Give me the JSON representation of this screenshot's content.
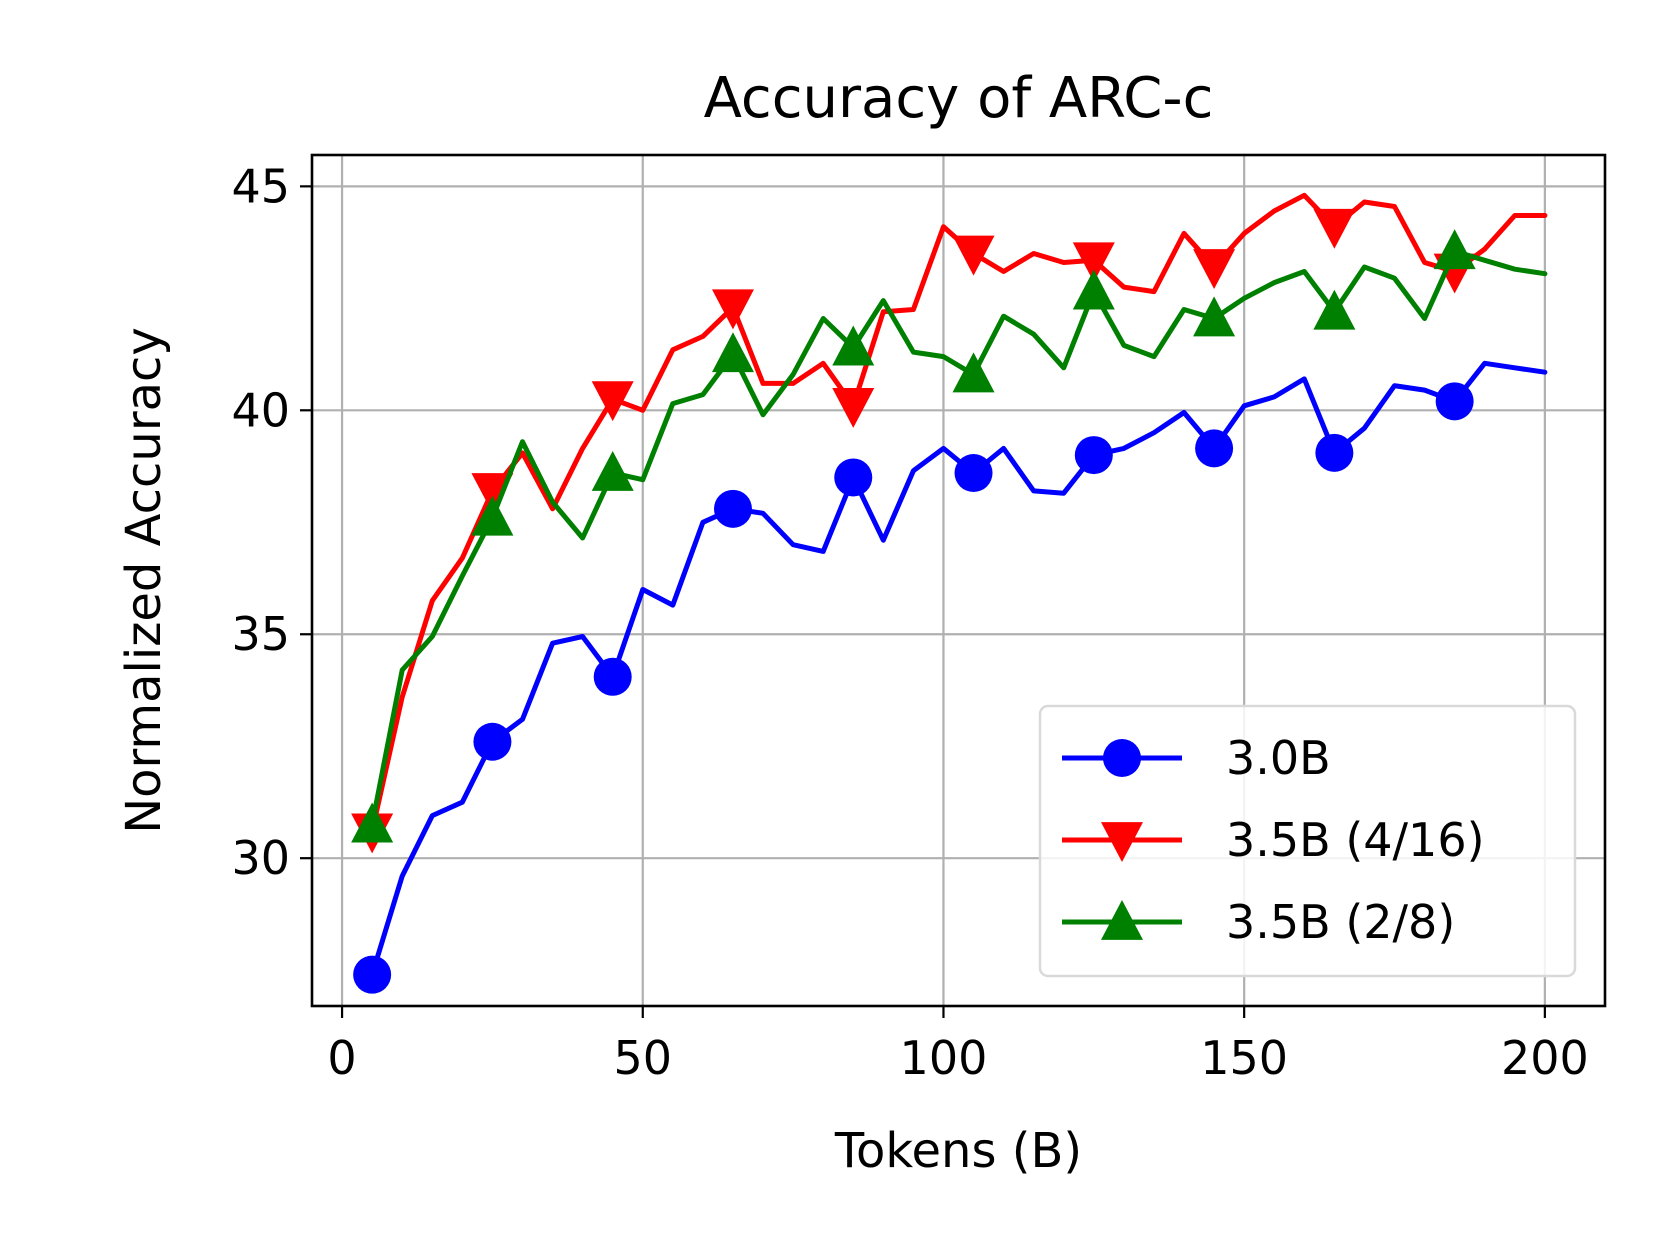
{
  "chart_data": {
    "type": "line",
    "title": "Accuracy of ARC-c",
    "xlabel": "Tokens (B)",
    "ylabel": "Normalized Accuracy",
    "xlim": [
      -5,
      210
    ],
    "ylim": [
      26.7,
      45.7
    ],
    "xticks": [
      0,
      50,
      100,
      150,
      200
    ],
    "yticks": [
      30,
      35,
      40,
      45
    ],
    "grid": true,
    "legend_position": "lower-right",
    "series": [
      {
        "name": "3.0B",
        "color": "#0000ff",
        "marker": "circle",
        "x": [
          5,
          10,
          15,
          20,
          25,
          30,
          35,
          40,
          45,
          50,
          55,
          60,
          65,
          70,
          75,
          80,
          85,
          90,
          95,
          100,
          105,
          110,
          115,
          120,
          125,
          130,
          135,
          140,
          145,
          150,
          155,
          160,
          165,
          170,
          175,
          180,
          185,
          190,
          195,
          200
        ],
        "y": [
          27.4,
          29.6,
          30.95,
          31.25,
          32.6,
          33.1,
          34.8,
          34.95,
          34.05,
          36.0,
          35.65,
          37.5,
          37.8,
          37.7,
          37.0,
          36.85,
          38.5,
          37.1,
          38.65,
          39.15,
          38.6,
          39.15,
          38.2,
          38.15,
          39.0,
          39.15,
          39.5,
          39.95,
          39.15,
          40.1,
          40.3,
          40.7,
          39.05,
          39.6,
          40.55,
          40.45,
          40.2,
          41.05,
          40.95,
          40.85
        ],
        "marker_x": [
          5,
          25,
          45,
          65,
          85,
          105,
          125,
          145,
          165,
          185
        ],
        "marker_y": [
          27.4,
          32.6,
          34.05,
          37.8,
          38.5,
          38.6,
          39.0,
          39.15,
          39.05,
          40.2
        ]
      },
      {
        "name": "3.5B (4/16)",
        "color": "#ff0000",
        "marker": "triangle-down",
        "x": [
          5,
          10,
          15,
          20,
          25,
          30,
          35,
          40,
          45,
          50,
          55,
          60,
          65,
          70,
          75,
          80,
          85,
          90,
          95,
          100,
          105,
          110,
          115,
          120,
          125,
          130,
          135,
          140,
          145,
          150,
          155,
          160,
          165,
          170,
          175,
          180,
          185,
          190,
          195,
          200
        ],
        "y": [
          30.6,
          33.6,
          35.75,
          36.7,
          38.2,
          39.05,
          37.8,
          39.15,
          40.25,
          40.0,
          41.35,
          41.65,
          42.3,
          40.6,
          40.6,
          41.05,
          40.1,
          42.2,
          42.25,
          44.1,
          43.5,
          43.1,
          43.5,
          43.3,
          43.35,
          42.75,
          42.65,
          43.95,
          43.2,
          43.95,
          44.45,
          44.8,
          44.1,
          44.65,
          44.55,
          43.3,
          43.1,
          43.6,
          44.35,
          44.35
        ],
        "marker_x": [
          5,
          25,
          45,
          65,
          85,
          105,
          125,
          145,
          165,
          185
        ],
        "marker_y": [
          30.6,
          38.2,
          40.25,
          42.3,
          40.1,
          43.5,
          43.35,
          43.2,
          44.1,
          43.1
        ]
      },
      {
        "name": "3.5B (2/8)",
        "color": "#008000",
        "marker": "triangle-up",
        "x": [
          5,
          10,
          15,
          20,
          25,
          30,
          35,
          40,
          45,
          50,
          55,
          60,
          65,
          70,
          75,
          80,
          85,
          90,
          95,
          100,
          105,
          110,
          115,
          120,
          125,
          130,
          135,
          140,
          145,
          150,
          155,
          160,
          165,
          170,
          175,
          180,
          185,
          190,
          195,
          200
        ],
        "y": [
          30.75,
          34.2,
          34.95,
          36.3,
          37.6,
          39.3,
          37.95,
          37.15,
          38.6,
          38.45,
          40.15,
          40.35,
          41.25,
          39.9,
          40.8,
          42.05,
          41.4,
          42.45,
          41.3,
          41.2,
          40.8,
          42.1,
          41.7,
          40.95,
          42.65,
          41.45,
          41.2,
          42.25,
          42.05,
          42.5,
          42.85,
          43.1,
          42.2,
          43.2,
          42.95,
          42.05,
          43.55,
          43.35,
          43.15,
          43.05
        ],
        "marker_x": [
          5,
          25,
          45,
          65,
          85,
          105,
          125,
          145,
          165,
          185
        ],
        "marker_y": [
          30.75,
          37.6,
          38.6,
          41.25,
          41.4,
          40.8,
          42.65,
          42.05,
          42.2,
          43.55
        ]
      }
    ]
  }
}
